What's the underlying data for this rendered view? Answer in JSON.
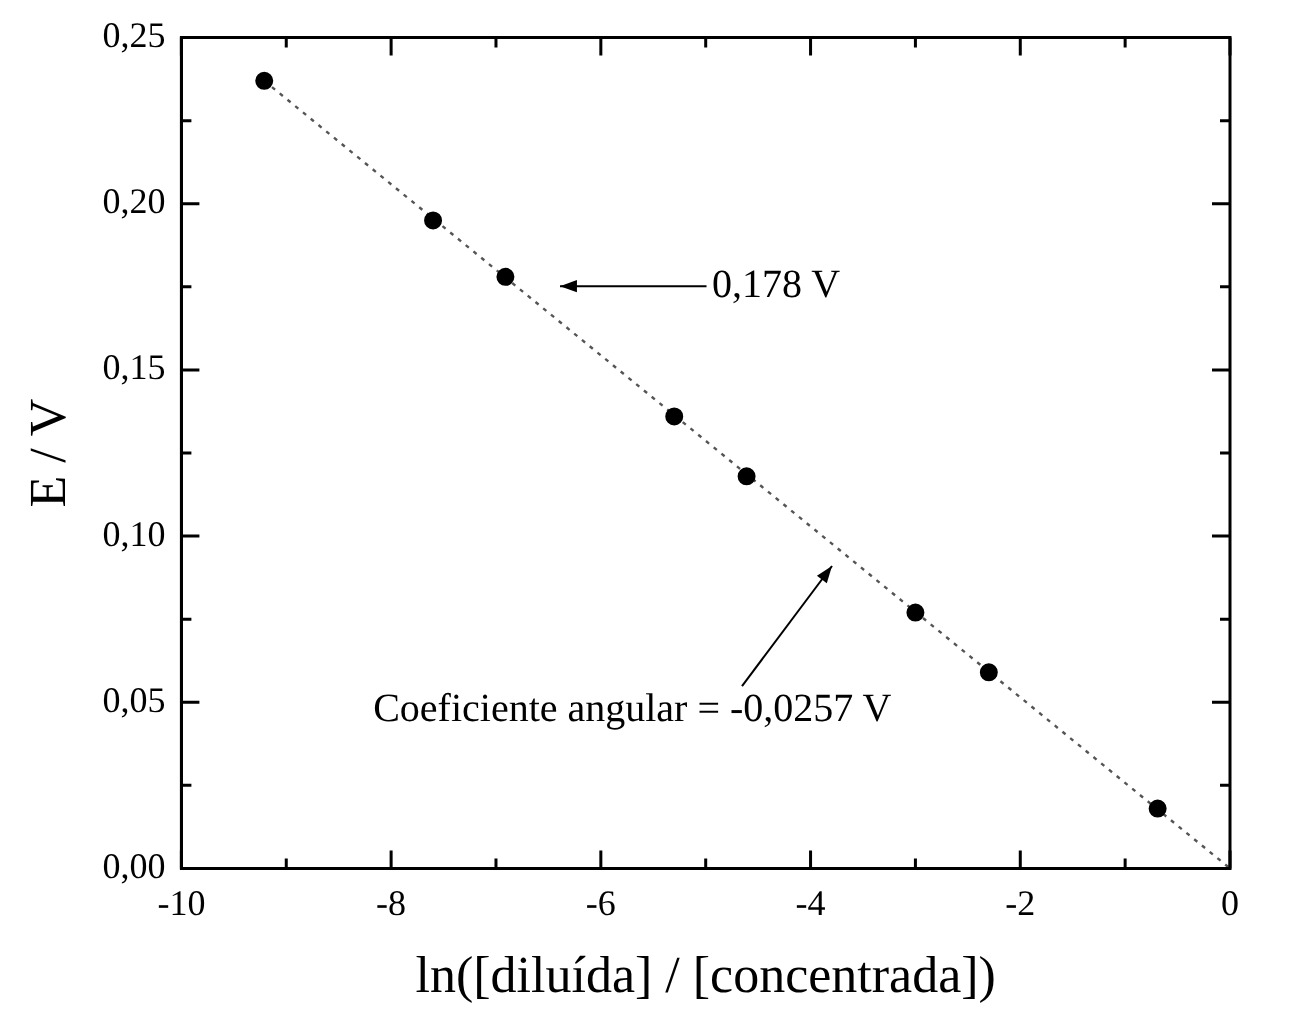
{
  "chart_data": {
    "type": "scatter",
    "xlabel": "ln([diluída] / [concentrada])",
    "ylabel": "E / V",
    "xlim": [
      -10,
      0
    ],
    "ylim": [
      0,
      0.25
    ],
    "xticks": [
      -10,
      {
        "value": -9,
        "label": null
      },
      -8,
      {
        "value": -7,
        "label": null
      },
      -6,
      {
        "value": -5,
        "label": null
      },
      -4,
      {
        "value": -3,
        "label": null
      },
      -2,
      {
        "value": -1,
        "label": null
      },
      0
    ],
    "yticks": [
      {
        "value": 0,
        "label": "0,00"
      },
      {
        "value": 0.025,
        "label": null
      },
      {
        "value": 0.05,
        "label": "0,05"
      },
      {
        "value": 0.075,
        "label": null
      },
      {
        "value": 0.1,
        "label": "0,10"
      },
      {
        "value": 0.125,
        "label": null
      },
      {
        "value": 0.15,
        "label": "0,15"
      },
      {
        "value": 0.175,
        "label": null
      },
      {
        "value": 0.2,
        "label": "0,20"
      },
      {
        "value": 0.225,
        "label": null
      },
      {
        "value": 0.25,
        "label": "0,25"
      }
    ],
    "grid": false,
    "legend": false,
    "marker": "circle",
    "series": [
      {
        "type": "scatter",
        "color": "#000000",
        "x": [
          -9.21,
          -7.6,
          -6.91,
          -5.3,
          -4.61,
          -3.0,
          -2.3,
          -0.69
        ],
        "values": [
          0.237,
          0.195,
          0.178,
          0.136,
          0.118,
          0.077,
          0.059,
          0.018
        ]
      },
      {
        "type": "line",
        "color": "#555555",
        "line_style": "dotted",
        "marker": "none",
        "x": [
          -9.21,
          0
        ],
        "values": [
          0.237,
          0
        ]
      }
    ],
    "annotations": [
      "0,178 V",
      "Coeficiente angular = -0,0257 V"
    ]
  }
}
